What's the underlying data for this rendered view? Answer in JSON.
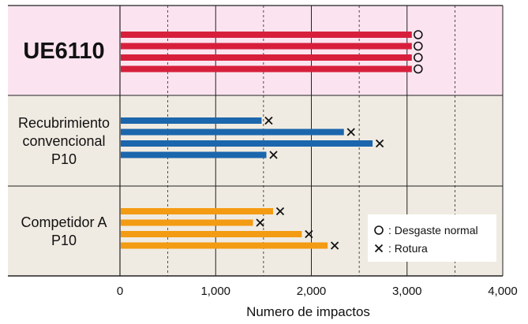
{
  "chart_data": {
    "type": "bar",
    "orientation": "horizontal",
    "xlabel": "Numero de impactos",
    "xlim": [
      0,
      4000
    ],
    "x_ticks": [
      0,
      1000,
      2000,
      3000,
      4000
    ],
    "x_tick_labels": [
      "0",
      "1,000",
      "2,000",
      "3,000",
      "4,000"
    ],
    "grid": "vertical, solid at thousands and dashed at half-thousands",
    "groups": [
      {
        "label_lines": [
          "UE6110"
        ],
        "bar_color": "#d71f3c",
        "background": "#fbe4ef",
        "values": [
          3050,
          3050,
          3050,
          3050
        ],
        "end_markers": [
          "wear",
          "wear",
          "wear",
          "wear"
        ]
      },
      {
        "label_lines": [
          "Recubrimiento",
          "convencional",
          "P10"
        ],
        "bar_color": "#1b66ac",
        "background": "#f0ebe2",
        "values": [
          1480,
          2340,
          2640,
          1530
        ],
        "end_markers": [
          "break",
          "break",
          "break",
          "break"
        ]
      },
      {
        "label_lines": [
          "Competidor A",
          "P10"
        ],
        "bar_color": "#f39b12",
        "background": "#f0ebe2",
        "values": [
          1600,
          1390,
          1900,
          2170
        ],
        "end_markers": [
          "break",
          "break",
          "break",
          "break"
        ]
      }
    ],
    "legend": {
      "placement": "bottom-right",
      "items": [
        {
          "symbol": "wear",
          "label": ": Desgaste normal"
        },
        {
          "symbol": "break",
          "label": ": Rotura"
        }
      ]
    }
  }
}
